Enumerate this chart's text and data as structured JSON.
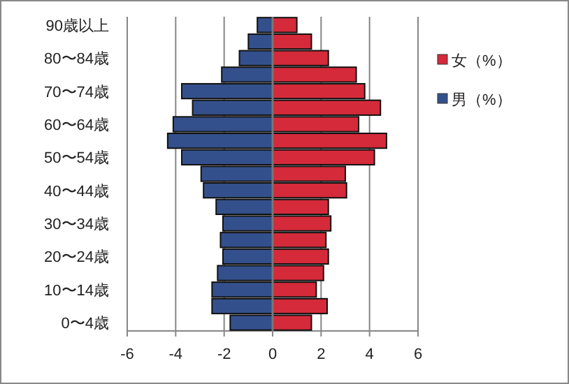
{
  "chart_data": {
    "type": "bar",
    "orientation": "horizontal",
    "categories": [
      "90歳以上",
      null,
      "80〜84歳",
      null,
      "70〜74歳",
      null,
      "60〜64歳",
      null,
      "50〜54歳",
      null,
      "40〜44歳",
      null,
      "30〜34歳",
      null,
      "20〜24歳",
      null,
      "10〜14歳",
      null,
      "0〜4歳"
    ],
    "series": [
      {
        "name": "女（%）",
        "color": "#d42a3a",
        "values": [
          1.0,
          1.6,
          2.3,
          3.45,
          3.8,
          4.45,
          3.55,
          4.7,
          4.2,
          3.0,
          3.05,
          2.3,
          2.4,
          2.2,
          2.3,
          2.1,
          1.8,
          2.25,
          1.6
        ]
      },
      {
        "name": "男（%）",
        "color": "#34508c",
        "values": [
          -0.63,
          -1.0,
          -1.37,
          -2.1,
          -3.75,
          -3.3,
          -4.1,
          -4.33,
          -3.75,
          -2.95,
          -2.85,
          -2.33,
          -2.05,
          -2.15,
          -2.05,
          -2.27,
          -2.5,
          -2.5,
          -1.75
        ]
      }
    ],
    "xlim": [
      -6,
      6
    ],
    "xticks": [
      -6,
      -4,
      -2,
      0,
      2,
      4,
      6
    ],
    "grid": "x",
    "legend": "right",
    "stacked": true
  }
}
